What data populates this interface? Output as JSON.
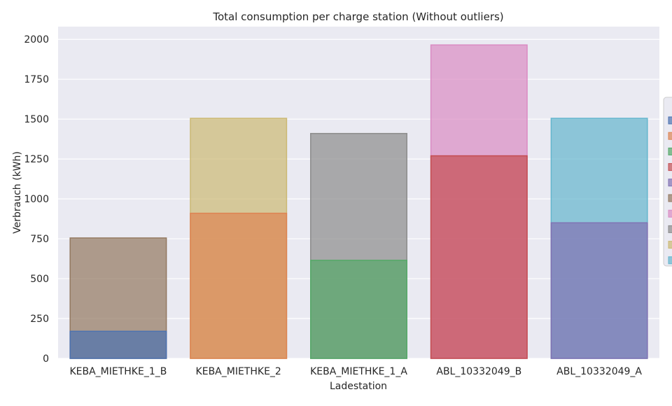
{
  "chart_data": {
    "type": "bar",
    "title": "Total consumption per charge station (Without outliers)",
    "xlabel": "Ladestation",
    "ylabel": "Verbrauch (kWh)",
    "ylim": [
      0,
      2080
    ],
    "yticks": [
      0,
      250,
      500,
      750,
      1000,
      1250,
      1500,
      1750,
      2000
    ],
    "grid": true,
    "legend_placement": "right (partially cut off)",
    "categories": [
      "KEBA_MIETHKE_1_B",
      "KEBA_MIETHKE_2",
      "KEBA_MIETHKE_1_A",
      "ABL_10332049_B",
      "ABL_10332049_A"
    ],
    "series": [
      {
        "color": "#4C72B0",
        "values": [
          170,
          0,
          0,
          0,
          0
        ]
      },
      {
        "color": "#DD8452",
        "values": [
          0,
          910,
          0,
          0,
          0
        ]
      },
      {
        "color": "#55A868",
        "values": [
          0,
          0,
          615,
          0,
          0
        ]
      },
      {
        "color": "#C44E52",
        "values": [
          0,
          0,
          0,
          1270,
          0
        ]
      },
      {
        "color": "#8172B3",
        "values": [
          0,
          0,
          0,
          0,
          850
        ]
      },
      {
        "color": "#937860",
        "values": [
          755,
          0,
          0,
          0,
          0
        ]
      },
      {
        "color": "#DA8BC3",
        "values": [
          0,
          0,
          0,
          1965,
          0
        ]
      },
      {
        "color": "#8C8C8C",
        "values": [
          0,
          0,
          1410,
          0,
          0
        ]
      },
      {
        "color": "#CCB974",
        "values": [
          0,
          1505,
          0,
          0,
          0
        ]
      },
      {
        "color": "#64B5CD",
        "values": [
          0,
          0,
          0,
          0,
          1505
        ]
      }
    ]
  }
}
